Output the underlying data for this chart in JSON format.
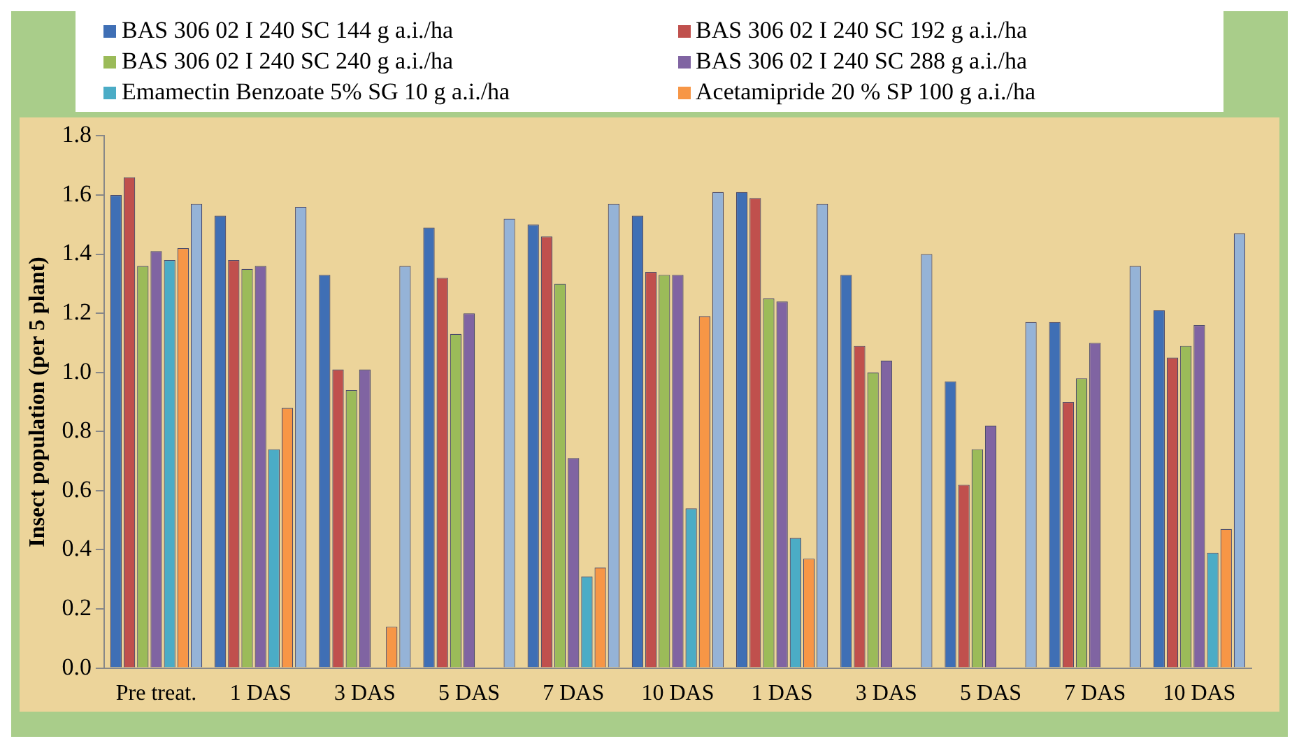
{
  "chart_data": {
    "type": "bar",
    "ylabel": "Insect population (per 5 plant)",
    "categories": [
      "Pre treat.",
      "1 DAS",
      "3 DAS",
      "5 DAS",
      "7 DAS",
      "10 DAS",
      "1 DAS",
      "3 DAS",
      "5 DAS",
      "7 DAS",
      "10 DAS"
    ],
    "series": [
      {
        "name": "BAS 306 02 I 240 SC 144 g a.i./ha",
        "color": "#3f6fb5",
        "values": [
          1.6,
          1.53,
          1.33,
          1.49,
          1.5,
          1.53,
          1.61,
          1.33,
          0.97,
          1.17,
          1.21
        ]
      },
      {
        "name": "BAS 306 02 I 240 SC 192 g a.i./ha",
        "color": "#c0504d",
        "values": [
          1.66,
          1.38,
          1.01,
          1.32,
          1.46,
          1.34,
          1.59,
          1.09,
          0.62,
          0.9,
          1.05
        ]
      },
      {
        "name": "BAS 306 02 I 240 SC 240 g a.i./ha",
        "color": "#9bbb59",
        "values": [
          1.36,
          1.35,
          0.94,
          1.13,
          1.3,
          1.33,
          1.25,
          1.0,
          0.74,
          0.98,
          1.09
        ]
      },
      {
        "name": "BAS 306 02 I 240 SC 288 g a.i./ha",
        "color": "#8064a2",
        "values": [
          1.41,
          1.36,
          1.01,
          1.2,
          0.71,
          1.33,
          1.24,
          1.04,
          0.82,
          1.1,
          1.16
        ]
      },
      {
        "name": "Emamectin Benzoate 5% SG 10 g a.i./ha",
        "color": "#4bacc6",
        "values": [
          1.38,
          0.74,
          0,
          0,
          0.31,
          0.54,
          0.44,
          0,
          0,
          0,
          0.39
        ]
      },
      {
        "name": "Acetamipride 20 % SP 100 g a.i./ha",
        "color": "#f79646",
        "values": [
          1.42,
          0.88,
          0.14,
          0,
          0.34,
          1.19,
          0.37,
          0,
          0,
          0,
          0.47
        ]
      },
      {
        "color": "#95b3d7",
        "values": [
          1.57,
          1.56,
          1.36,
          1.52,
          1.57,
          1.61,
          1.57,
          1.4,
          1.17,
          1.36,
          1.47
        ]
      }
    ],
    "ylim": [
      0,
      1.8
    ],
    "yticks": [
      {
        "value": 0,
        "label": "0.0"
      },
      0.2,
      0.4,
      0.6,
      0.8,
      {
        "value": 1,
        "label": "1.0"
      },
      1.2,
      1.4,
      1.6,
      1.8
    ],
    "legend": "top",
    "grid": false
  }
}
